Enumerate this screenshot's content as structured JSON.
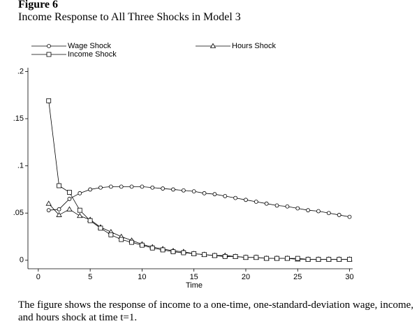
{
  "figure_label": "Figure 6",
  "caption": "The figure shows the response of income to a one-time, one-standard-deviation wage, income, and hours shock at time t=1.",
  "chart_data": {
    "type": "line",
    "title": "Income Response to All Three Shocks in Model 3",
    "x_label": "Time",
    "x": [
      1,
      2,
      3,
      4,
      5,
      6,
      7,
      8,
      9,
      10,
      11,
      12,
      13,
      14,
      15,
      16,
      17,
      18,
      19,
      20,
      21,
      22,
      23,
      24,
      25,
      26,
      27,
      28,
      29,
      30
    ],
    "series": [
      {
        "name": "Wage Shock",
        "color": "#000000",
        "marker": "circle",
        "values": [
          0.053,
          0.054,
          0.065,
          0.071,
          0.075,
          0.077,
          0.078,
          0.078,
          0.078,
          0.078,
          0.077,
          0.076,
          0.075,
          0.074,
          0.073,
          0.071,
          0.07,
          0.068,
          0.066,
          0.064,
          0.062,
          0.06,
          0.058,
          0.057,
          0.055,
          0.053,
          0.052,
          0.05,
          0.048,
          0.046
        ]
      },
      {
        "name": "Hours Shock",
        "color": "#000000",
        "marker": "triangle",
        "values": [
          0.06,
          0.048,
          0.054,
          0.047,
          0.043,
          0.035,
          0.03,
          0.025,
          0.021,
          0.017,
          0.014,
          0.012,
          0.01,
          0.009,
          0.007,
          0.006,
          0.005,
          0.005,
          0.004,
          0.003,
          0.003,
          0.002,
          0.002,
          0.002,
          0.001,
          0.001,
          0.001,
          0.001,
          0.001,
          0.001
        ]
      },
      {
        "name": "Income Shock",
        "color": "#000000",
        "marker": "square",
        "values": [
          0.169,
          0.079,
          0.072,
          0.053,
          0.042,
          0.034,
          0.027,
          0.022,
          0.019,
          0.016,
          0.013,
          0.011,
          0.009,
          0.008,
          0.007,
          0.006,
          0.005,
          0.004,
          0.004,
          0.003,
          0.003,
          0.002,
          0.002,
          0.002,
          0.002,
          0.001,
          0.001,
          0.001,
          0.001,
          0.001
        ]
      }
    ],
    "xlim": [
      -1,
      30.3
    ],
    "xticks": [
      0,
      5,
      10,
      15,
      20,
      25,
      30
    ],
    "ylim": [
      -0.009,
      0.204
    ],
    "yticks": [
      {
        "value": 0,
        "label": "0"
      },
      {
        "value": 0.05,
        "label": ".05"
      },
      {
        "value": 0.1,
        "label": ".1"
      },
      {
        "value": 0.15,
        "label": ".15"
      },
      {
        "value": 0.2,
        "label": ".2"
      }
    ]
  }
}
